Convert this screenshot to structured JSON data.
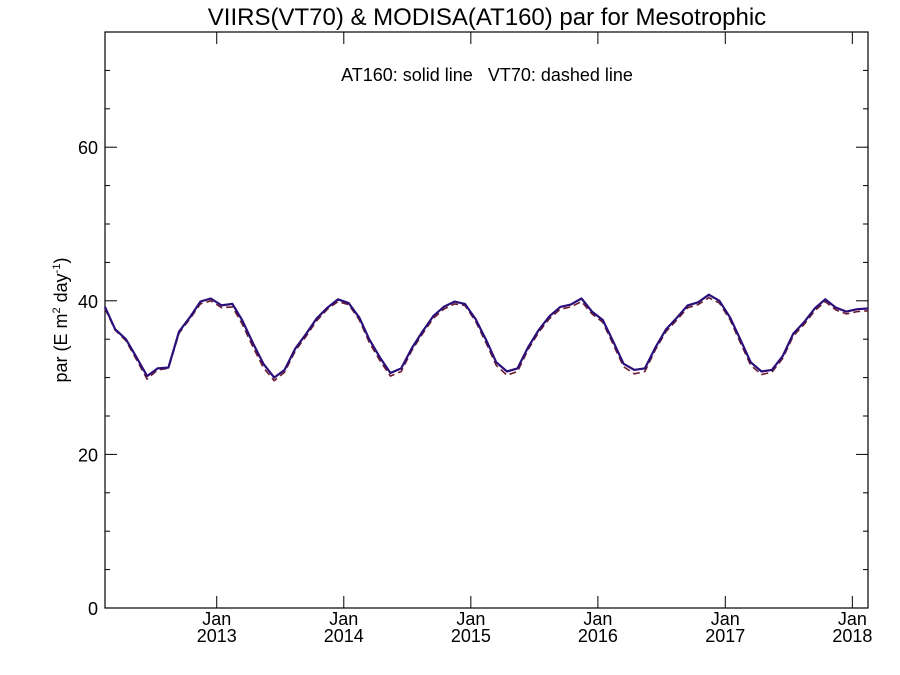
{
  "chart_data": {
    "type": "line",
    "title": "VIIRS(VT70) & MODISA(AT160)  par for Mesotrophic",
    "annotation": "AT160: solid line   VT70: dashed line",
    "ylabel": {
      "main": "par (E m",
      "sup1": "2",
      "mid": " day",
      "sup2": "-1",
      "end": ")"
    },
    "ylim": [
      0,
      75
    ],
    "xlim": [
      "2012-02-15",
      "2018-02-15"
    ],
    "y_ticks": [
      0,
      20,
      40,
      60
    ],
    "x_ticks": [
      {
        "date": "2013-01-01",
        "month": "Jan",
        "year": "2013"
      },
      {
        "date": "2014-01-01",
        "month": "Jan",
        "year": "2014"
      },
      {
        "date": "2015-01-01",
        "month": "Jan",
        "year": "2015"
      },
      {
        "date": "2016-01-01",
        "month": "Jan",
        "year": "2016"
      },
      {
        "date": "2017-01-01",
        "month": "Jan",
        "year": "2017"
      },
      {
        "date": "2018-01-01",
        "month": "Jan",
        "year": "2018"
      }
    ],
    "grid": false,
    "colors": {
      "AT160": "#2a0f7a",
      "VT70": "#6a1a2e"
    },
    "series": [
      {
        "name": "AT160",
        "style": "solid",
        "x": [
          "2012-02-15",
          "2012-03-15",
          "2012-04-15",
          "2012-05-15",
          "2012-06-15",
          "2012-07-15",
          "2012-08-15",
          "2012-09-15",
          "2012-10-15",
          "2012-11-15",
          "2012-12-15",
          "2013-01-15",
          "2013-02-15",
          "2013-03-15",
          "2013-04-15",
          "2013-05-15",
          "2013-06-15",
          "2013-07-15",
          "2013-08-15",
          "2013-09-15",
          "2013-10-15",
          "2013-11-15",
          "2013-12-15",
          "2014-01-15",
          "2014-02-15",
          "2014-03-15",
          "2014-04-15",
          "2014-05-15",
          "2014-06-15",
          "2014-07-15",
          "2014-08-15",
          "2014-09-15",
          "2014-10-15",
          "2014-11-15",
          "2014-12-15",
          "2015-01-15",
          "2015-02-15",
          "2015-03-15",
          "2015-04-15",
          "2015-05-15",
          "2015-06-15",
          "2015-07-15",
          "2015-08-15",
          "2015-09-15",
          "2015-10-15",
          "2015-11-15",
          "2015-12-15",
          "2016-01-15",
          "2016-02-15",
          "2016-03-15",
          "2016-04-15",
          "2016-05-15",
          "2016-06-15",
          "2016-07-15",
          "2016-08-15",
          "2016-09-15",
          "2016-10-15",
          "2016-11-15",
          "2016-12-15",
          "2017-01-15",
          "2017-02-15",
          "2017-03-15",
          "2017-04-15",
          "2017-05-15",
          "2017-06-15",
          "2017-07-15",
          "2017-08-15",
          "2017-09-15",
          "2017-10-15",
          "2017-11-15",
          "2017-12-15",
          "2018-01-15",
          "2018-02-15"
        ],
        "values": [
          39.2,
          36.3,
          35.0,
          32.7,
          30.2,
          31.2,
          31.3,
          36.0,
          37.8,
          39.9,
          40.3,
          39.4,
          39.6,
          37.5,
          34.5,
          31.8,
          30.0,
          31.0,
          33.8,
          35.7,
          37.7,
          39.1,
          40.2,
          39.7,
          37.8,
          35.0,
          32.6,
          30.6,
          31.2,
          33.8,
          36.0,
          38.0,
          39.2,
          39.9,
          39.6,
          37.6,
          34.8,
          32.0,
          30.8,
          31.2,
          34.0,
          36.2,
          38.0,
          39.2,
          39.5,
          40.3,
          38.6,
          37.5,
          34.6,
          31.8,
          31.0,
          31.2,
          34.0,
          36.3,
          37.8,
          39.4,
          39.8,
          40.8,
          40.0,
          37.8,
          34.8,
          32.0,
          30.8,
          31.0,
          32.8,
          35.7,
          37.2,
          39.0,
          40.2,
          39.1,
          38.6,
          38.9,
          39.0
        ]
      },
      {
        "name": "VT70",
        "style": "dashed",
        "x": [
          "2012-02-15",
          "2012-03-15",
          "2012-04-15",
          "2012-05-15",
          "2012-06-15",
          "2012-07-15",
          "2012-08-15",
          "2012-09-15",
          "2012-10-15",
          "2012-11-15",
          "2012-12-15",
          "2013-01-15",
          "2013-02-15",
          "2013-03-15",
          "2013-04-15",
          "2013-05-15",
          "2013-06-15",
          "2013-07-15",
          "2013-08-15",
          "2013-09-15",
          "2013-10-15",
          "2013-11-15",
          "2013-12-15",
          "2014-01-15",
          "2014-02-15",
          "2014-03-15",
          "2014-04-15",
          "2014-05-15",
          "2014-06-15",
          "2014-07-15",
          "2014-08-15",
          "2014-09-15",
          "2014-10-15",
          "2014-11-15",
          "2014-12-15",
          "2015-01-15",
          "2015-02-15",
          "2015-03-15",
          "2015-04-15",
          "2015-05-15",
          "2015-06-15",
          "2015-07-15",
          "2015-08-15",
          "2015-09-15",
          "2015-10-15",
          "2015-11-15",
          "2015-12-15",
          "2016-01-15",
          "2016-02-15",
          "2016-03-15",
          "2016-04-15",
          "2016-05-15",
          "2016-06-15",
          "2016-07-15",
          "2016-08-15",
          "2016-09-15",
          "2016-10-15",
          "2016-11-15",
          "2016-12-15",
          "2017-01-15",
          "2017-02-15",
          "2017-03-15",
          "2017-04-15",
          "2017-05-15",
          "2017-06-15",
          "2017-07-15",
          "2017-08-15",
          "2017-09-15",
          "2017-10-15",
          "2017-11-15",
          "2017-12-15",
          "2018-01-15",
          "2018-02-15"
        ],
        "values": [
          39.0,
          36.2,
          34.8,
          32.4,
          29.8,
          31.0,
          31.2,
          35.8,
          37.6,
          39.6,
          40.0,
          39.1,
          39.2,
          37.0,
          34.0,
          31.3,
          29.6,
          30.7,
          33.5,
          35.4,
          37.4,
          38.9,
          39.9,
          39.5,
          37.5,
          34.6,
          32.2,
          30.2,
          30.8,
          33.5,
          35.7,
          37.7,
          38.9,
          39.6,
          39.4,
          37.3,
          34.4,
          31.6,
          30.3,
          30.8,
          33.7,
          35.9,
          37.7,
          38.9,
          39.2,
          39.9,
          38.3,
          37.2,
          34.2,
          31.4,
          30.5,
          30.8,
          33.7,
          36.0,
          37.5,
          39.1,
          39.5,
          40.4,
          39.7,
          37.5,
          34.4,
          31.6,
          30.4,
          30.7,
          32.5,
          35.4,
          36.9,
          38.7,
          39.9,
          38.8,
          38.3,
          38.6,
          38.7
        ]
      }
    ]
  }
}
